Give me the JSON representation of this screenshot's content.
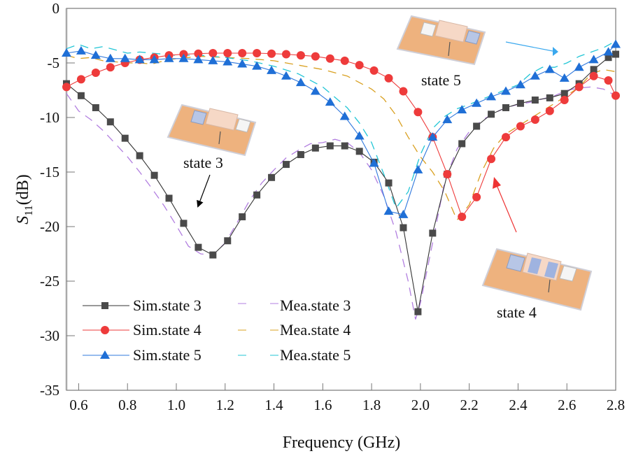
{
  "chart_data": {
    "type": "line",
    "title": "",
    "xlabel": "Frequency (GHz)",
    "ylabel_main": "S",
    "ylabel_sub": "11",
    "ylabel_unit": "(dB)",
    "xlim": [
      0.55,
      2.8
    ],
    "ylim": [
      -35,
      0
    ],
    "xticks": [
      "0.6",
      "0.8",
      "1.0",
      "1.2",
      "1.4",
      "1.6",
      "1.8",
      "2.0",
      "2.2",
      "2.4",
      "2.6",
      "2.8"
    ],
    "xtick_values": [
      0.6,
      0.8,
      1.0,
      1.2,
      1.4,
      1.6,
      1.8,
      2.0,
      2.2,
      2.4,
      2.6,
      2.8
    ],
    "yticks": [
      "0",
      "-5",
      "-10",
      "-15",
      "-20",
      "-25",
      "-30",
      "-35"
    ],
    "ytick_values": [
      0,
      -5,
      -10,
      -15,
      -20,
      -25,
      -30,
      -35
    ],
    "grid": false,
    "legend_position": "bottom-left",
    "series": [
      {
        "name": "Sim.state 3",
        "kind": "sim",
        "marker": "square",
        "color": "#4a4a4a",
        "line_color": "#333333",
        "x": [
          0.55,
          0.61,
          0.67,
          0.73,
          0.79,
          0.85,
          0.91,
          0.97,
          1.03,
          1.09,
          1.15,
          1.21,
          1.27,
          1.33,
          1.39,
          1.45,
          1.51,
          1.57,
          1.63,
          1.69,
          1.75,
          1.81,
          1.87,
          1.93,
          1.99,
          2.05,
          2.11,
          2.17,
          2.23,
          2.29,
          2.35,
          2.41,
          2.47,
          2.53,
          2.59,
          2.65,
          2.71,
          2.77,
          2.8
        ],
        "y": [
          -6.9,
          -8.0,
          -9.1,
          -10.4,
          -11.9,
          -13.5,
          -15.3,
          -17.4,
          -19.7,
          -21.9,
          -22.6,
          -21.3,
          -19.1,
          -17.1,
          -15.5,
          -14.3,
          -13.4,
          -12.8,
          -12.6,
          -12.6,
          -13.1,
          -14.1,
          -16.0,
          -20.1,
          -27.8,
          -20.6,
          -15.2,
          -12.4,
          -10.8,
          -9.7,
          -9.1,
          -8.7,
          -8.4,
          -8.2,
          -7.8,
          -6.9,
          -5.6,
          -4.5,
          -4.2
        ]
      },
      {
        "name": "Sim.state 4",
        "kind": "sim",
        "marker": "circle",
        "color": "#ee3b3b",
        "line_color": "#ee3b3b",
        "x": [
          0.55,
          0.61,
          0.67,
          0.73,
          0.79,
          0.85,
          0.91,
          0.97,
          1.03,
          1.09,
          1.15,
          1.21,
          1.27,
          1.33,
          1.39,
          1.45,
          1.51,
          1.57,
          1.63,
          1.69,
          1.75,
          1.81,
          1.87,
          1.93,
          1.99,
          2.05,
          2.11,
          2.17,
          2.23,
          2.29,
          2.35,
          2.41,
          2.47,
          2.53,
          2.59,
          2.65,
          2.71,
          2.77,
          2.8
        ],
        "y": [
          -7.2,
          -6.5,
          -5.9,
          -5.4,
          -5.0,
          -4.7,
          -4.5,
          -4.3,
          -4.2,
          -4.15,
          -4.1,
          -4.1,
          -4.1,
          -4.1,
          -4.15,
          -4.2,
          -4.3,
          -4.4,
          -4.6,
          -4.8,
          -5.2,
          -5.7,
          -6.4,
          -7.6,
          -9.5,
          -11.8,
          -15.2,
          -19.1,
          -17.3,
          -13.8,
          -11.8,
          -10.8,
          -10.2,
          -9.4,
          -8.4,
          -7.2,
          -6.2,
          -6.6,
          -8.0
        ]
      },
      {
        "name": "Sim.state 5",
        "kind": "sim",
        "marker": "triangle",
        "color": "#1f6fd6",
        "line_color": "#2f78dd",
        "x": [
          0.55,
          0.61,
          0.67,
          0.73,
          0.79,
          0.85,
          0.91,
          0.97,
          1.03,
          1.09,
          1.15,
          1.21,
          1.27,
          1.33,
          1.39,
          1.45,
          1.51,
          1.57,
          1.63,
          1.69,
          1.75,
          1.81,
          1.87,
          1.93,
          1.99,
          2.05,
          2.11,
          2.17,
          2.23,
          2.29,
          2.35,
          2.41,
          2.47,
          2.53,
          2.59,
          2.65,
          2.71,
          2.77,
          2.8
        ],
        "y": [
          -4.1,
          -3.9,
          -4.3,
          -4.6,
          -4.6,
          -4.7,
          -4.7,
          -4.6,
          -4.6,
          -4.7,
          -4.8,
          -4.9,
          -5.1,
          -5.3,
          -5.7,
          -6.2,
          -6.8,
          -7.6,
          -8.6,
          -9.9,
          -11.7,
          -14.2,
          -18.6,
          -18.9,
          -14.8,
          -11.8,
          -10.2,
          -9.3,
          -8.7,
          -8.1,
          -7.6,
          -7.0,
          -6.2,
          -5.6,
          -6.4,
          -5.4,
          -4.7,
          -4.0,
          -3.3
        ]
      },
      {
        "name": "Mea.state 3",
        "kind": "mea",
        "marker": "none",
        "color": "#b27fe0",
        "line_color": "#b27fe0",
        "x": [
          0.55,
          0.6,
          0.65,
          0.7,
          0.75,
          0.8,
          0.85,
          0.9,
          0.95,
          1.0,
          1.05,
          1.1,
          1.15,
          1.2,
          1.25,
          1.3,
          1.35,
          1.4,
          1.45,
          1.5,
          1.55,
          1.6,
          1.65,
          1.7,
          1.75,
          1.8,
          1.85,
          1.9,
          1.95,
          1.98,
          2.0,
          2.05,
          2.1,
          2.15,
          2.2,
          2.25,
          2.3,
          2.35,
          2.4,
          2.45,
          2.5,
          2.55,
          2.6,
          2.65,
          2.7,
          2.75,
          2.8
        ],
        "y": [
          -7.8,
          -9.4,
          -10.2,
          -11.2,
          -12.4,
          -13.6,
          -15.0,
          -16.5,
          -18.1,
          -19.9,
          -21.8,
          -22.5,
          -22.6,
          -21.5,
          -19.6,
          -17.6,
          -16.0,
          -14.8,
          -13.7,
          -13.0,
          -12.4,
          -12.3,
          -12.0,
          -12.3,
          -13.2,
          -14.8,
          -17.2,
          -20.5,
          -25.0,
          -28.5,
          -27.0,
          -21.5,
          -15.8,
          -12.9,
          -11.3,
          -10.3,
          -9.6,
          -9.1,
          -8.8,
          -8.6,
          -8.3,
          -8.0,
          -7.5,
          -7.3,
          -7.2,
          -7.4,
          -8.0
        ]
      },
      {
        "name": "Mea.state 4",
        "kind": "mea",
        "marker": "none",
        "color": "#d9a020",
        "line_color": "#d9a020",
        "x": [
          0.55,
          0.6,
          0.65,
          0.7,
          0.75,
          0.8,
          0.85,
          0.9,
          0.95,
          1.0,
          1.1,
          1.2,
          1.3,
          1.4,
          1.5,
          1.6,
          1.7,
          1.8,
          1.85,
          1.9,
          1.95,
          2.0,
          2.05,
          2.1,
          2.15,
          2.2,
          2.25,
          2.3,
          2.35,
          2.4,
          2.45,
          2.5,
          2.55,
          2.6,
          2.65,
          2.7,
          2.75,
          2.8
        ],
        "y": [
          -4.3,
          -4.6,
          -4.5,
          -4.8,
          -4.9,
          -5.0,
          -5.0,
          -5.1,
          -4.8,
          -4.6,
          -4.4,
          -4.5,
          -4.6,
          -4.8,
          -5.2,
          -5.6,
          -6.2,
          -7.4,
          -8.3,
          -9.8,
          -11.8,
          -13.6,
          -15.0,
          -16.8,
          -19.4,
          -18.0,
          -15.0,
          -12.8,
          -11.5,
          -10.8,
          -10.1,
          -9.4,
          -8.7,
          -8.0,
          -7.2,
          -6.0,
          -5.6,
          -5.8
        ]
      },
      {
        "name": "Mea.state 5",
        "kind": "mea",
        "marker": "none",
        "color": "#22c6d6",
        "line_color": "#22c6d6",
        "x": [
          0.55,
          0.6,
          0.65,
          0.7,
          0.75,
          0.8,
          0.85,
          0.9,
          1.0,
          1.1,
          1.2,
          1.3,
          1.4,
          1.5,
          1.6,
          1.7,
          1.75,
          1.8,
          1.85,
          1.9,
          1.95,
          2.0,
          2.05,
          2.1,
          2.15,
          2.2,
          2.3,
          2.4,
          2.45,
          2.5,
          2.55,
          2.6,
          2.65,
          2.7,
          2.75,
          2.8
        ],
        "y": [
          -3.7,
          -3.3,
          -3.7,
          -3.5,
          -3.8,
          -4.1,
          -4.0,
          -4.1,
          -4.3,
          -4.3,
          -4.5,
          -4.8,
          -5.3,
          -6.0,
          -7.2,
          -9.1,
          -10.5,
          -12.3,
          -15.2,
          -18.3,
          -16.8,
          -13.4,
          -11.0,
          -9.9,
          -9.2,
          -8.8,
          -7.9,
          -7.0,
          -6.0,
          -5.4,
          -5.4,
          -5.0,
          -4.4,
          -4.0,
          -3.6,
          -3.0
        ]
      }
    ],
    "annotations": [
      {
        "text": "state 3",
        "points_to": "Sim.state 3 minimum near 1.15 GHz"
      },
      {
        "text": "state 4",
        "points_to": "Sim.state 4 minimum near 2.2 GHz"
      },
      {
        "text": "state 5",
        "points_to": "Sim.state 5 upper band near 2.55 GHz"
      }
    ]
  }
}
